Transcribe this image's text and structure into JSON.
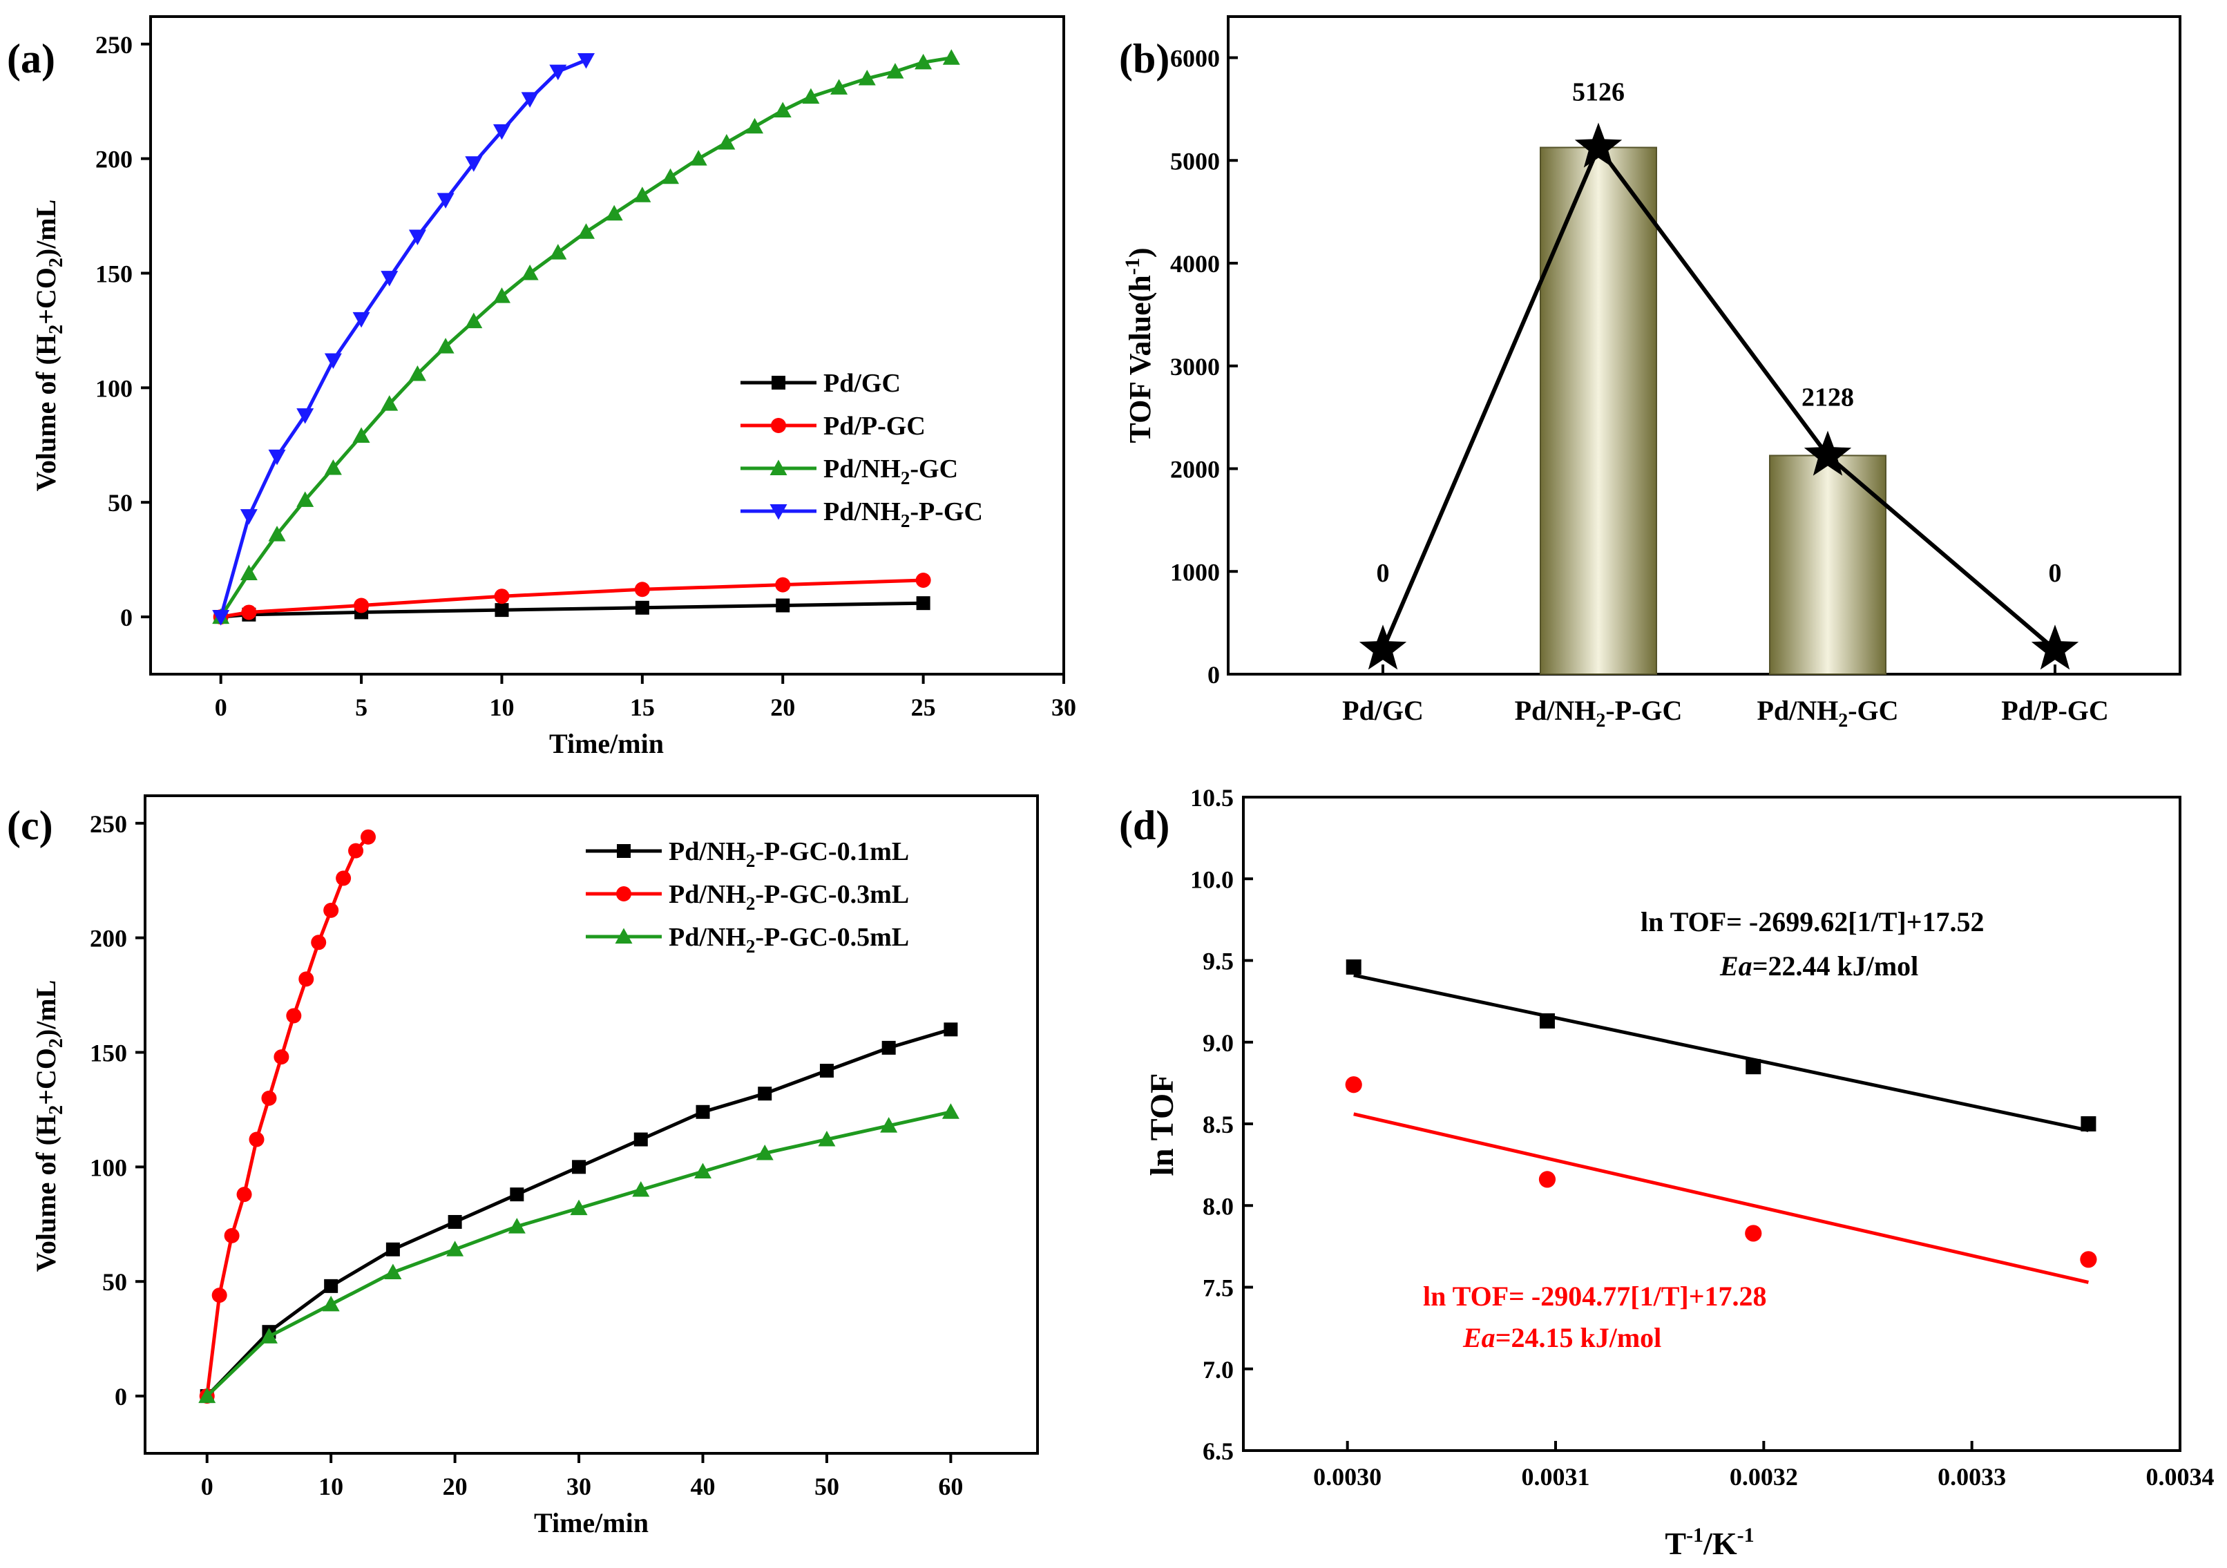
{
  "chart_data": [
    {
      "panel": "(a)",
      "type": "line",
      "xlabel": "Time/min",
      "ylabel": "Volume of (H2+CO2)/mL",
      "xlim": [
        -2.5,
        30
      ],
      "ylim": [
        -25,
        262
      ],
      "xticks": [
        "0",
        "5",
        "10",
        "15",
        "20",
        "25",
        "30"
      ],
      "yticks": [
        "0",
        "50",
        "100",
        "150",
        "200",
        "250"
      ],
      "legend": "center-right",
      "series": [
        {
          "name": "Pd/GC",
          "label": "Pd/GC",
          "sub": "",
          "suffix": "",
          "color": "#000000",
          "marker": "square",
          "x": [
            0,
            1,
            5,
            10,
            15,
            20,
            25
          ],
          "y": [
            0,
            1,
            2,
            3,
            4,
            5,
            6
          ]
        },
        {
          "name": "Pd/P-GC",
          "label": "Pd/P-GC",
          "sub": "",
          "suffix": "",
          "color": "#ff0000",
          "marker": "circle",
          "x": [
            0,
            1,
            5,
            10,
            15,
            20,
            25
          ],
          "y": [
            0,
            2,
            5,
            9,
            12,
            14,
            16
          ]
        },
        {
          "name": "Pd/NH2-GC",
          "label": "Pd/NH",
          "sub": "2",
          "suffix": "-GC",
          "color": "#1f9a1f",
          "marker": "triangle-up",
          "x": [
            0,
            1,
            2,
            3,
            4,
            5,
            6,
            7,
            8,
            9,
            10,
            11,
            12,
            13,
            14,
            15,
            16,
            17,
            18,
            19,
            20,
            21,
            22,
            23,
            24,
            25,
            26
          ],
          "y": [
            0,
            19,
            36,
            51,
            65,
            79,
            93,
            106,
            118,
            129,
            140,
            150,
            159,
            168,
            176,
            184,
            192,
            200,
            207,
            214,
            221,
            227,
            231,
            235,
            238,
            242,
            244
          ]
        },
        {
          "name": "Pd/NH2-P-GC",
          "label": "Pd/NH",
          "sub": "2",
          "suffix": "-P-GC",
          "color": "#1a1aff",
          "marker": "triangle-down",
          "x": [
            0,
            1,
            2,
            3,
            4,
            5,
            6,
            7,
            8,
            9,
            10,
            11,
            12,
            13
          ],
          "y": [
            0,
            44,
            70,
            88,
            112,
            130,
            148,
            166,
            182,
            198,
            212,
            226,
            238,
            243
          ]
        }
      ]
    },
    {
      "panel": "(b)",
      "type": "bar",
      "xlabel": "",
      "ylabel": "TOF Value(h-1)",
      "ylim": [
        0,
        6400
      ],
      "yticks": [
        "0",
        "1000",
        "2000",
        "3000",
        "4000",
        "5000",
        "6000"
      ],
      "categories": [
        {
          "label": "Pd/GC",
          "main": "Pd/GC",
          "sub": "",
          "suffix": ""
        },
        {
          "label": "Pd/NH2-P-GC",
          "main": "Pd/NH",
          "sub": "2",
          "suffix": "-P-GC"
        },
        {
          "label": "Pd/NH2-GC",
          "main": "Pd/NH",
          "sub": "2",
          "suffix": "-GC"
        },
        {
          "label": "Pd/P-GC",
          "main": "Pd/P-GC",
          "sub": "",
          "suffix": ""
        }
      ],
      "values": [
        0,
        5126,
        2128,
        0
      ],
      "data_labels": [
        "0",
        "5126",
        "2128",
        "0"
      ],
      "star_values": [
        240,
        5126,
        2128,
        240
      ],
      "colors": {
        "bar": "#75733c",
        "bar_highlight": "#f4f2de",
        "star": "#000000"
      }
    },
    {
      "panel": "(c)",
      "type": "line",
      "xlabel": "Time/min",
      "ylabel": "Volume of (H2+CO2)/mL",
      "xlim": [
        -5,
        67
      ],
      "ylim": [
        -25,
        262
      ],
      "xticks": [
        "0",
        "10",
        "20",
        "30",
        "40",
        "50",
        "60"
      ],
      "yticks": [
        "0",
        "50",
        "100",
        "150",
        "200",
        "250"
      ],
      "legend": "top-right",
      "series": [
        {
          "name": "Pd/NH2-P-GC-0.1mL",
          "label": "Pd/NH",
          "sub": "2",
          "suffix": "-P-GC-0.1mL",
          "color": "#000000",
          "marker": "square",
          "x": [
            0,
            5,
            10,
            15,
            20,
            25,
            30,
            35,
            40,
            45,
            50,
            55,
            60
          ],
          "y": [
            0,
            28,
            48,
            64,
            76,
            88,
            100,
            112,
            124,
            132,
            142,
            152,
            160
          ]
        },
        {
          "name": "Pd/NH2-P-GC-0.3mL",
          "label": "Pd/NH",
          "sub": "2",
          "suffix": "-P-GC-0.3mL",
          "color": "#ff0000",
          "marker": "circle",
          "x": [
            0,
            1,
            2,
            3,
            4,
            5,
            6,
            7,
            8,
            9,
            10,
            11,
            12,
            13
          ],
          "y": [
            0,
            44,
            70,
            88,
            112,
            130,
            148,
            166,
            182,
            198,
            212,
            226,
            238,
            244
          ]
        },
        {
          "name": "Pd/NH2-P-GC-0.5mL",
          "label": "Pd/NH",
          "sub": "2",
          "suffix": "-P-GC-0.5mL",
          "color": "#1f9a1f",
          "marker": "triangle-up",
          "x": [
            0,
            5,
            10,
            15,
            20,
            25,
            30,
            35,
            40,
            45,
            50,
            55,
            60
          ],
          "y": [
            0,
            26,
            40,
            54,
            64,
            74,
            82,
            90,
            98,
            106,
            112,
            118,
            124
          ]
        }
      ]
    },
    {
      "panel": "(d)",
      "type": "scatter",
      "xlabel": "T-1/K-1",
      "ylabel": "ln TOF",
      "xlim": [
        0.00295,
        0.0034
      ],
      "ylim": [
        6.5,
        10.5
      ],
      "xticks": [
        "0.0030",
        "0.0031",
        "0.0032",
        "0.0033",
        "0.0034"
      ],
      "yticks": [
        "6.5",
        "7.0",
        "7.5",
        "8.0",
        "8.5",
        "9.0",
        "9.5",
        "10.0",
        "10.5"
      ],
      "series": [
        {
          "name": "fit1",
          "color": "#000000",
          "marker": "square",
          "x": [
            0.003003,
            0.003096,
            0.003195,
            0.003356
          ],
          "y": [
            9.46,
            9.13,
            8.85,
            8.5
          ],
          "fit_x": [
            0.003003,
            0.003356
          ],
          "fit_y": [
            9.41,
            8.46
          ],
          "equation": "ln TOF= -2699.62[1/T]+17.52",
          "ea_value": "=22.44 kJ/mol"
        },
        {
          "name": "fit2",
          "color": "#ff0000",
          "marker": "circle",
          "x": [
            0.003003,
            0.003096,
            0.003195,
            0.003356
          ],
          "y": [
            8.74,
            8.16,
            7.83,
            7.67
          ],
          "fit_x": [
            0.003003,
            0.003356
          ],
          "fit_y": [
            8.56,
            7.53
          ],
          "equation": "ln TOF= -2904.77[1/T]+17.28",
          "ea_value": "=24.15 kJ/mol"
        }
      ],
      "ea_label": "Ea"
    }
  ]
}
